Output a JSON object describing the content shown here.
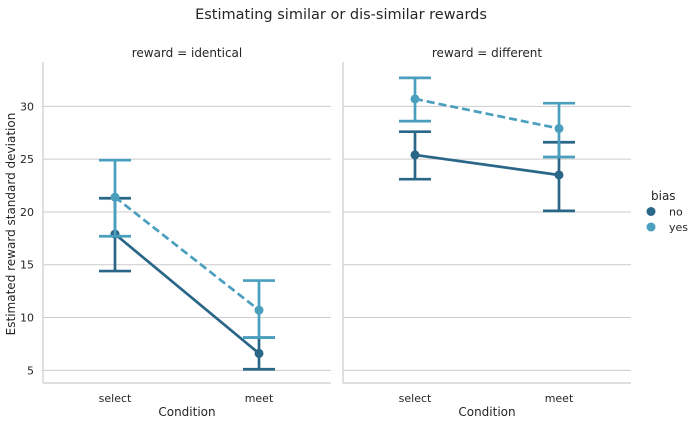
{
  "chart_data": {
    "type": "line",
    "title": "Estimating similar or dis-similar rewards",
    "ylabel": "Estimated reward standard deviation",
    "xlabel": "Condition",
    "categories": [
      "select",
      "meet"
    ],
    "yticks": [
      5,
      10,
      15,
      20,
      25,
      30
    ],
    "ylim": [
      3.8,
      34.2
    ],
    "grid": "horizontal",
    "legend": {
      "title": "bias",
      "placement": "right",
      "entries": [
        {
          "label": "no",
          "color": "#2a6688"
        },
        {
          "label": "yes",
          "color": "#4a9fbe"
        }
      ]
    },
    "panels": [
      {
        "title": "reward = identical",
        "series": [
          {
            "name": "no",
            "color": "#2a6688",
            "dashed": false,
            "values": [
              17.9,
              6.6
            ],
            "ci_low": [
              14.4,
              5.1
            ],
            "ci_high": [
              21.3,
              8.1
            ]
          },
          {
            "name": "yes",
            "color": "#4a9fbe",
            "dashed": true,
            "values": [
              21.4,
              10.7
            ],
            "ci_low": [
              17.7,
              8.1
            ],
            "ci_high": [
              24.9,
              13.5
            ]
          }
        ]
      },
      {
        "title": "reward = different",
        "series": [
          {
            "name": "no",
            "color": "#2a6688",
            "dashed": false,
            "values": [
              25.4,
              23.5
            ],
            "ci_low": [
              23.1,
              20.1
            ],
            "ci_high": [
              27.6,
              26.6
            ]
          },
          {
            "name": "yes",
            "color": "#4a9fbe",
            "dashed": true,
            "values": [
              30.7,
              27.9
            ],
            "ci_low": [
              28.6,
              25.2
            ],
            "ci_high": [
              32.7,
              30.3
            ]
          }
        ]
      }
    ]
  }
}
